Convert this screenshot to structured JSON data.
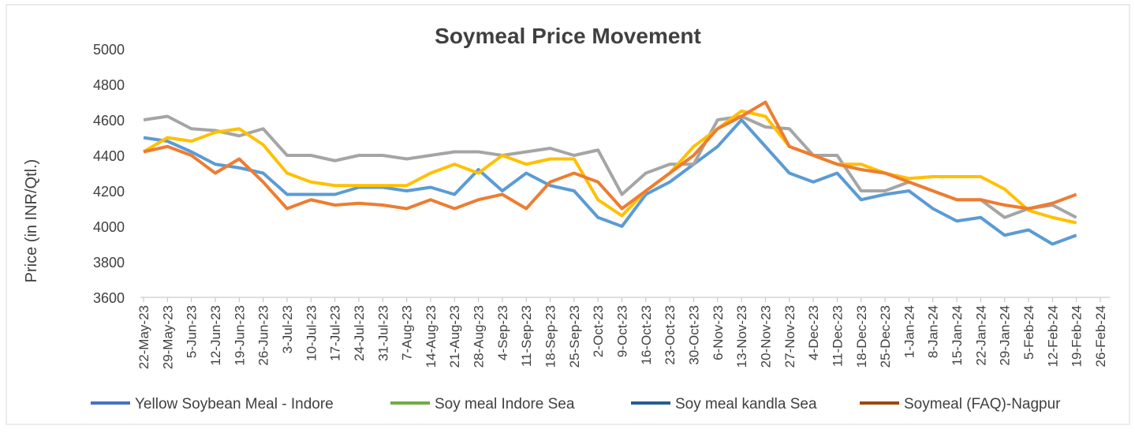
{
  "chart_data": {
    "type": "line",
    "title": "Soymeal Price Movement",
    "y_label": "Price (in  INR/Qtl.)",
    "categories": [
      "22-May-23",
      "29-May-23",
      "5-Jun-23",
      "12-Jun-23",
      "19-Jun-23",
      "26-Jun-23",
      "3-Jul-23",
      "10-Jul-23",
      "17-Jul-23",
      "24-Jul-23",
      "31-Jul-23",
      "7-Aug-23",
      "14-Aug-23",
      "21-Aug-23",
      "28-Aug-23",
      "4-Sep-23",
      "11-Sep-23",
      "18-Sep-23",
      "25-Sep-23",
      "2-Oct-23",
      "9-Oct-23",
      "16-Oct-23",
      "23-Oct-23",
      "30-Oct-23",
      "6-Nov-23",
      "13-Nov-23",
      "20-Nov-23",
      "27-Nov-23",
      "4-Dec-23",
      "11-Dec-23",
      "18-Dec-23",
      "25-Dec-23",
      "1-Jan-24",
      "8-Jan-24",
      "15-Jan-24",
      "22-Jan-24",
      "29-Jan-24",
      "5-Feb-24",
      "12-Feb-24",
      "19-Feb-24",
      "26-Feb-24"
    ],
    "series": [
      {
        "name": "Yellow Soybean Meal - Indore",
        "color": "#5b9bd5",
        "legend_color": "#4472c4",
        "values": [
          4500,
          4480,
          4420,
          4350,
          4330,
          4300,
          4180,
          4180,
          4180,
          4220,
          4220,
          4200,
          4220,
          4180,
          4320,
          4200,
          4300,
          4230,
          4200,
          4050,
          4000,
          4180,
          4250,
          4350,
          4450,
          4600,
          4450,
          4300,
          4250,
          4300,
          4150,
          4180,
          4200,
          4100,
          4030,
          4050,
          3950,
          3980,
          3900,
          3950,
          null
        ]
      },
      {
        "name": "Soy meal Indore Sea",
        "color": "#a5a5a5",
        "legend_color": "#70ad47",
        "values": [
          4600,
          4620,
          4550,
          4540,
          4510,
          4550,
          4400,
          4400,
          4370,
          4400,
          4400,
          4380,
          4400,
          4420,
          4420,
          4400,
          4420,
          4440,
          4400,
          4430,
          4180,
          4300,
          4350,
          4350,
          4600,
          4620,
          4560,
          4550,
          4400,
          4400,
          4200,
          4200,
          4250,
          4200,
          4150,
          4150,
          4050,
          4100,
          4120,
          4050,
          null
        ]
      },
      {
        "name": "Soy meal kandla Sea",
        "color": "#ffc000",
        "legend_color": "#255e91",
        "values": [
          4420,
          4500,
          4480,
          4530,
          4550,
          4460,
          4300,
          4250,
          4230,
          4230,
          4230,
          4230,
          4300,
          4350,
          4300,
          4400,
          4350,
          4380,
          4380,
          4150,
          4060,
          4200,
          4300,
          4450,
          4550,
          4650,
          4620,
          4450,
          4400,
          4350,
          4350,
          4300,
          4270,
          4280,
          4280,
          4280,
          4210,
          4090,
          4050,
          4020,
          null
        ]
      },
      {
        "name": "Soymeal (FAQ)-Nagpur",
        "color": "#ed7d31",
        "legend_color": "#9e480e",
        "values": [
          4420,
          4450,
          4400,
          4300,
          4380,
          4250,
          4100,
          4150,
          4120,
          4130,
          4120,
          4100,
          4150,
          4100,
          4150,
          4180,
          4100,
          4250,
          4300,
          4250,
          4100,
          4200,
          4300,
          4400,
          4550,
          4620,
          4700,
          4450,
          4400,
          4350,
          4320,
          4300,
          4250,
          4200,
          4150,
          4150,
          4120,
          4100,
          4130,
          4180,
          null
        ]
      }
    ],
    "ylim": [
      3600,
      5000
    ],
    "yticks": [
      3600,
      3800,
      4000,
      4200,
      4400,
      4600,
      4800,
      5000
    ],
    "grid": false
  }
}
